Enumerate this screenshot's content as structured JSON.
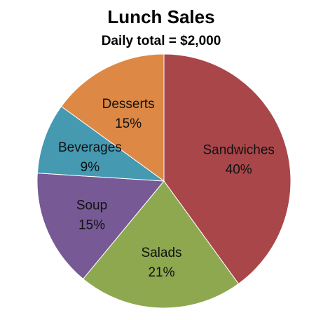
{
  "chart_data": {
    "type": "pie",
    "title": "Lunch Sales",
    "subtitle": "Daily total = $2,000",
    "categories": [
      "Sandwiches",
      "Salads",
      "Soup",
      "Beverages",
      "Desserts"
    ],
    "values": [
      40,
      21,
      15,
      9,
      15
    ],
    "value_labels": [
      "40%",
      "21%",
      "15%",
      "9%",
      "15%"
    ],
    "colors": [
      "#A9464A",
      "#8DA84F",
      "#775A95",
      "#4599B0",
      "#DD8844"
    ],
    "start_angle_deg": 0,
    "direction": "clockwise",
    "legend": "none",
    "data_labels": "inside"
  }
}
